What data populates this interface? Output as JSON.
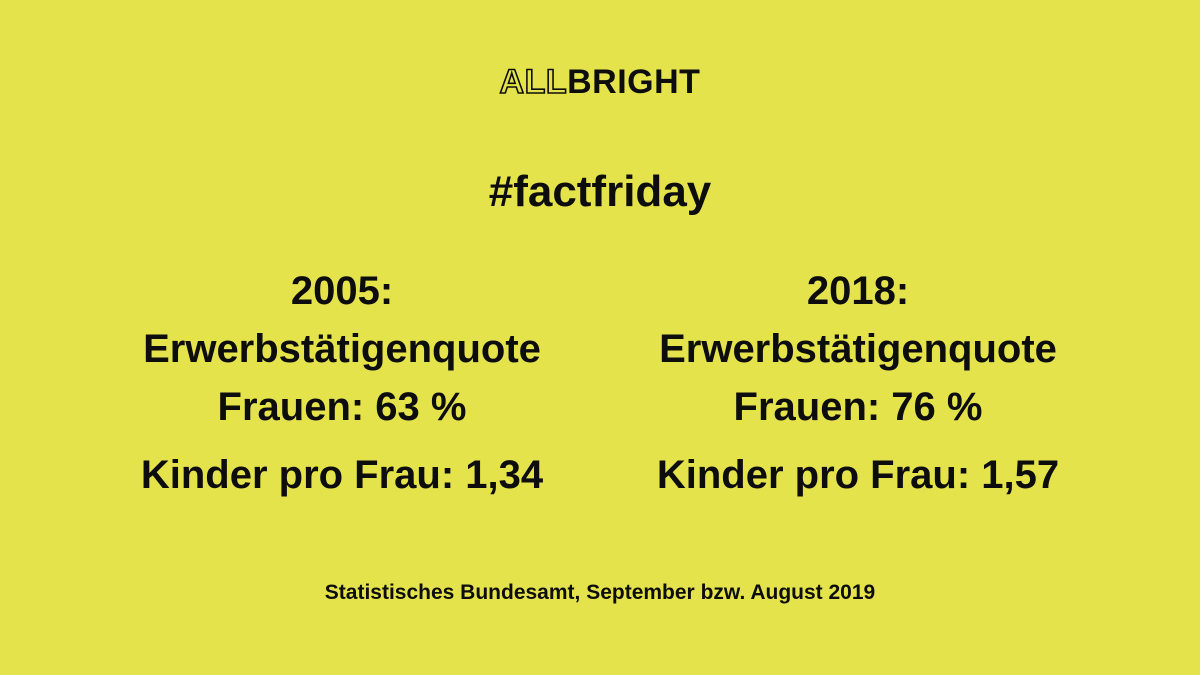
{
  "brand": {
    "logo_outline_part": "ALL",
    "logo_solid_part": "BRIGHT"
  },
  "hashtag": "#factfriday",
  "stats": [
    {
      "year": "2005:",
      "line1": "Erwerbstätigenquote",
      "line2": "Frauen: 63 %",
      "kinder": "Kinder pro Frau: 1,34"
    },
    {
      "year": "2018:",
      "line1": "Erwerbstätigenquote",
      "line2": "Frauen: 76 %",
      "kinder": "Kinder pro Frau: 1,57"
    }
  ],
  "source": "Statistisches Bundesamt, September bzw. August 2019",
  "colors": {
    "background": "#e5e34b",
    "text": "#0d0d0d"
  }
}
